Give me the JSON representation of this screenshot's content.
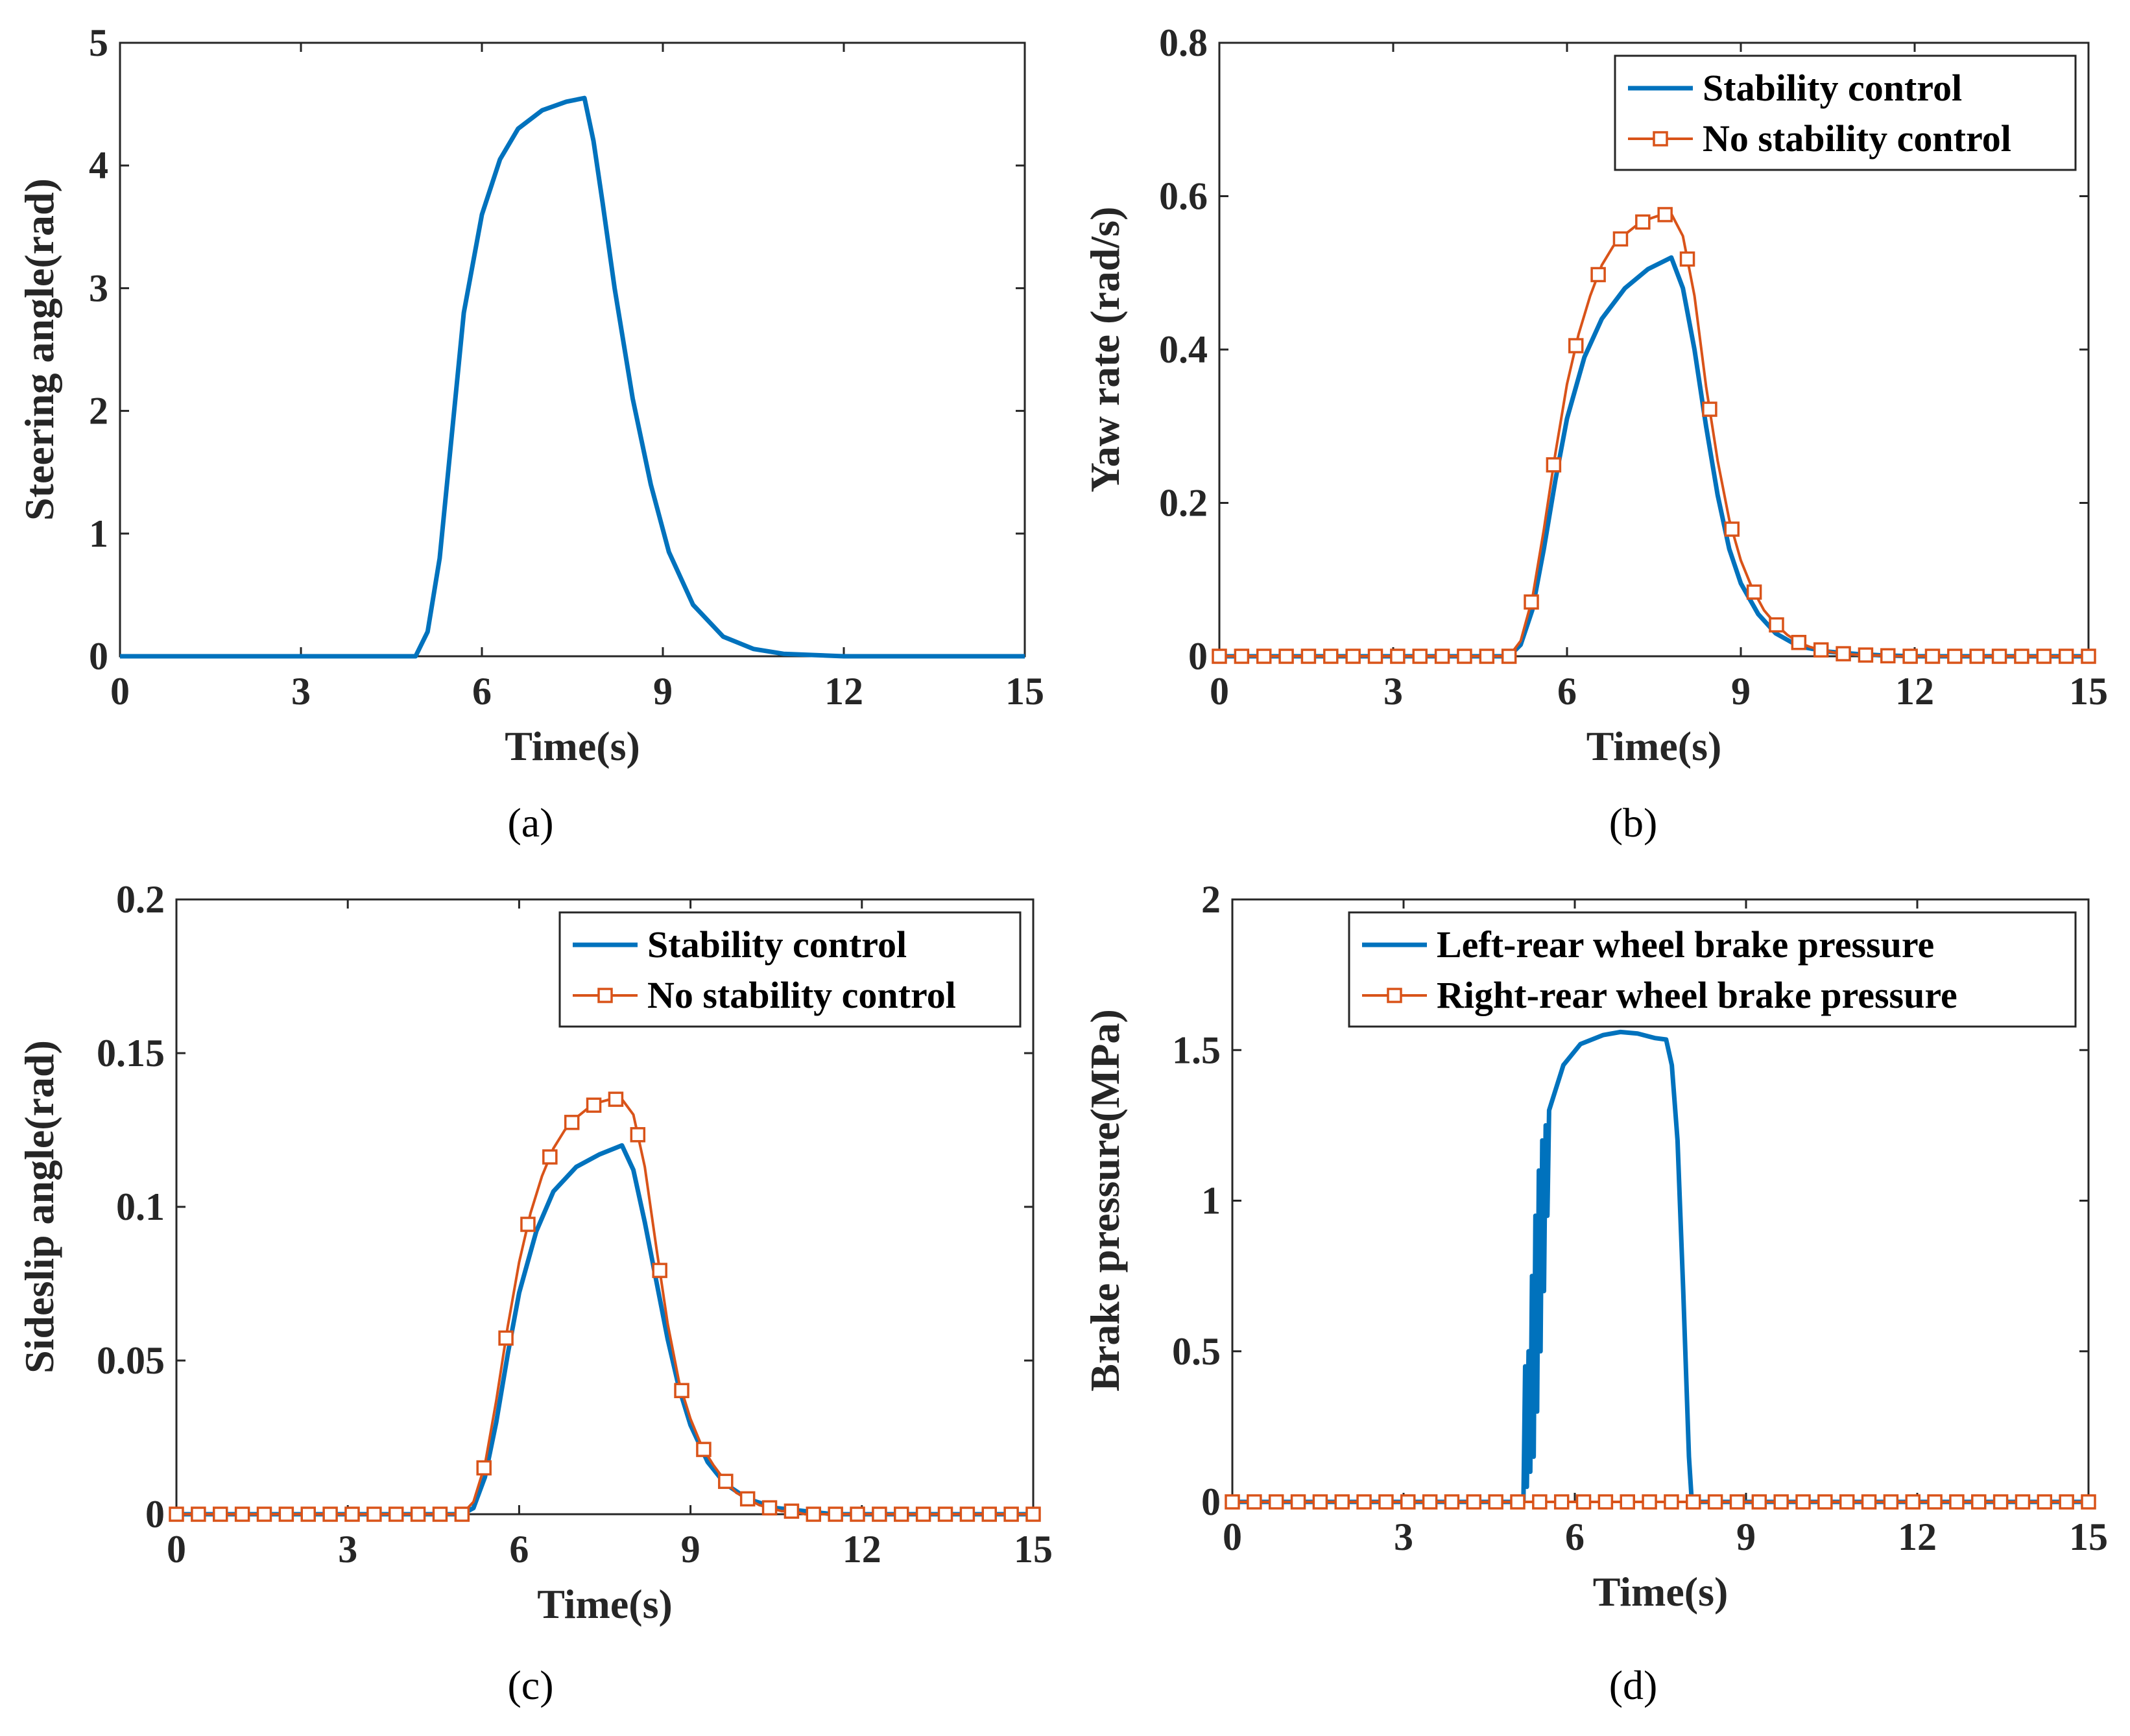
{
  "colors": {
    "series1": "#0072BD",
    "series2": "#D95319",
    "axis": "#262626"
  },
  "chart_data": [
    {
      "type": "line",
      "label": "(a)",
      "xlabel": "Time(s)",
      "ylabel": "Steering angle(rad)",
      "xlim": [
        0,
        15
      ],
      "ylim": [
        0,
        5
      ],
      "xticks": [
        "0",
        "3",
        "6",
        "9",
        "12",
        "15"
      ],
      "yticks": [
        "0",
        "1",
        "2",
        "3",
        "4",
        "5"
      ],
      "legend": null,
      "series": [
        {
          "name": "Steering angle",
          "color": "#0072BD",
          "marker": "none",
          "x": [
            0,
            4.9,
            5.1,
            5.3,
            5.5,
            5.7,
            6.0,
            6.3,
            6.6,
            7.0,
            7.4,
            7.7,
            7.85,
            8.0,
            8.2,
            8.5,
            8.8,
            9.1,
            9.5,
            10.0,
            10.5,
            11.0,
            11.5,
            12.0,
            15.0
          ],
          "y": [
            0,
            0,
            0.2,
            0.8,
            1.8,
            2.8,
            3.6,
            4.05,
            4.3,
            4.45,
            4.52,
            4.55,
            4.2,
            3.7,
            3.0,
            2.1,
            1.4,
            0.85,
            0.42,
            0.16,
            0.06,
            0.02,
            0.01,
            0,
            0
          ]
        }
      ]
    },
    {
      "type": "line",
      "label": "(b)",
      "xlabel": "Time(s)",
      "ylabel": "Yaw rate (rad/s)",
      "xlim": [
        0,
        15
      ],
      "ylim": [
        0,
        0.8
      ],
      "xticks": [
        "0",
        "3",
        "6",
        "9",
        "12",
        "15"
      ],
      "yticks": [
        "0",
        "0.2",
        "0.4",
        "0.6",
        "0.8"
      ],
      "legend": [
        "Stability control",
        "No stability control"
      ],
      "legend_position": "top-right",
      "series": [
        {
          "name": "Stability control",
          "color": "#0072BD",
          "marker": "none",
          "x": [
            0,
            5.0,
            5.2,
            5.4,
            5.6,
            5.8,
            6.0,
            6.3,
            6.6,
            7.0,
            7.4,
            7.8,
            8.0,
            8.2,
            8.4,
            8.6,
            8.8,
            9.0,
            9.3,
            9.6,
            10.0,
            10.5,
            11.0,
            11.5,
            12.0,
            15.0
          ],
          "y": [
            0,
            0,
            0.015,
            0.06,
            0.14,
            0.23,
            0.31,
            0.39,
            0.44,
            0.48,
            0.505,
            0.52,
            0.48,
            0.4,
            0.3,
            0.21,
            0.14,
            0.095,
            0.055,
            0.03,
            0.013,
            0.006,
            0.003,
            0.001,
            0,
            0
          ]
        },
        {
          "name": "No stability control",
          "color": "#D95319",
          "marker": "square",
          "x": [
            0,
            5.0,
            5.2,
            5.4,
            5.6,
            5.8,
            6.0,
            6.2,
            6.4,
            6.6,
            6.8,
            7.0,
            7.2,
            7.4,
            7.6,
            7.8,
            8.0,
            8.2,
            8.4,
            8.6,
            8.8,
            9.0,
            9.2,
            9.4,
            9.6,
            9.8,
            10.0,
            10.2,
            10.4,
            10.6,
            10.8,
            11.0,
            11.4,
            11.8,
            12.2,
            15.0
          ],
          "y": [
            0,
            0,
            0.02,
            0.075,
            0.165,
            0.265,
            0.355,
            0.42,
            0.47,
            0.51,
            0.535,
            0.55,
            0.562,
            0.57,
            0.575,
            0.577,
            0.548,
            0.47,
            0.352,
            0.255,
            0.178,
            0.125,
            0.088,
            0.06,
            0.042,
            0.028,
            0.018,
            0.012,
            0.008,
            0.005,
            0.003,
            0.002,
            0.001,
            0,
            0,
            0
          ]
        }
      ]
    },
    {
      "type": "line",
      "label": "(c)",
      "xlabel": "Time(s)",
      "ylabel": "Sideslip angle(rad)",
      "xlim": [
        0,
        15
      ],
      "ylim": [
        0,
        0.2
      ],
      "xticks": [
        "0",
        "3",
        "6",
        "9",
        "12",
        "15"
      ],
      "yticks": [
        "0",
        "0.05",
        "0.1",
        "0.15",
        "0.2"
      ],
      "legend": [
        "Stability control",
        "No stability control"
      ],
      "legend_position": "top-right",
      "series": [
        {
          "name": "Stability control",
          "color": "#0072BD",
          "marker": "none",
          "x": [
            0,
            5.0,
            5.2,
            5.4,
            5.6,
            5.8,
            6.0,
            6.3,
            6.6,
            7.0,
            7.4,
            7.8,
            8.0,
            8.2,
            8.4,
            8.6,
            8.8,
            9.0,
            9.3,
            9.6,
            10.0,
            10.5,
            11.0,
            11.5,
            12.0,
            15.0
          ],
          "y": [
            0,
            0,
            0.002,
            0.012,
            0.03,
            0.052,
            0.072,
            0.092,
            0.105,
            0.113,
            0.117,
            0.12,
            0.112,
            0.095,
            0.076,
            0.057,
            0.041,
            0.029,
            0.017,
            0.01,
            0.005,
            0.002,
            0.001,
            0,
            0,
            0
          ]
        },
        {
          "name": "No stability control",
          "color": "#D95319",
          "marker": "square",
          "x": [
            0,
            5.0,
            5.2,
            5.4,
            5.6,
            5.8,
            6.0,
            6.2,
            6.4,
            6.6,
            6.8,
            7.0,
            7.2,
            7.4,
            7.6,
            7.8,
            8.0,
            8.2,
            8.4,
            8.6,
            8.8,
            9.0,
            9.2,
            9.4,
            9.6,
            9.8,
            10.0,
            10.2,
            10.4,
            10.6,
            10.8,
            11.0,
            11.4,
            11.8,
            12.2,
            15.0
          ],
          "y": [
            0,
            0,
            0.004,
            0.016,
            0.037,
            0.061,
            0.082,
            0.098,
            0.11,
            0.119,
            0.125,
            0.129,
            0.132,
            0.134,
            0.135,
            0.135,
            0.13,
            0.113,
            0.087,
            0.062,
            0.043,
            0.031,
            0.022,
            0.016,
            0.011,
            0.007,
            0.005,
            0.003,
            0.002,
            0.001,
            0.001,
            0,
            0,
            0,
            0,
            0
          ]
        }
      ]
    },
    {
      "type": "line",
      "label": "(d)",
      "xlabel": "Time(s)",
      "ylabel": "Brake pressure(MPa)",
      "xlim": [
        0,
        15
      ],
      "ylim": [
        0,
        2
      ],
      "xticks": [
        "0",
        "3",
        "6",
        "9",
        "12",
        "15"
      ],
      "yticks": [
        "0",
        "0.5",
        "1",
        "1.5",
        "2"
      ],
      "legend": [
        "Left-rear wheel brake pressure",
        "Right-rear wheel brake pressure"
      ],
      "legend_position": "top-right",
      "series": [
        {
          "name": "Left-rear wheel brake pressure",
          "color": "#0072BD",
          "marker": "none",
          "x": [
            0,
            5.1,
            5.13,
            5.16,
            5.19,
            5.22,
            5.25,
            5.28,
            5.31,
            5.34,
            5.37,
            5.4,
            5.43,
            5.46,
            5.49,
            5.52,
            5.55,
            5.6,
            5.8,
            6.1,
            6.5,
            6.8,
            7.1,
            7.4,
            7.6,
            7.7,
            7.8,
            7.9,
            8.0,
            8.05,
            15.0
          ],
          "y": [
            0,
            0,
            0.45,
            0.05,
            0.5,
            0.1,
            0.75,
            0.15,
            0.95,
            0.3,
            1.1,
            0.5,
            1.2,
            0.7,
            1.25,
            0.95,
            1.3,
            1.33,
            1.45,
            1.52,
            1.55,
            1.56,
            1.555,
            1.54,
            1.535,
            1.45,
            1.2,
            0.7,
            0.15,
            0,
            0
          ]
        },
        {
          "name": "Right-rear wheel brake pressure",
          "color": "#D95319",
          "marker": "square",
          "x": [
            0,
            15
          ],
          "y": [
            0,
            0
          ]
        }
      ]
    }
  ]
}
